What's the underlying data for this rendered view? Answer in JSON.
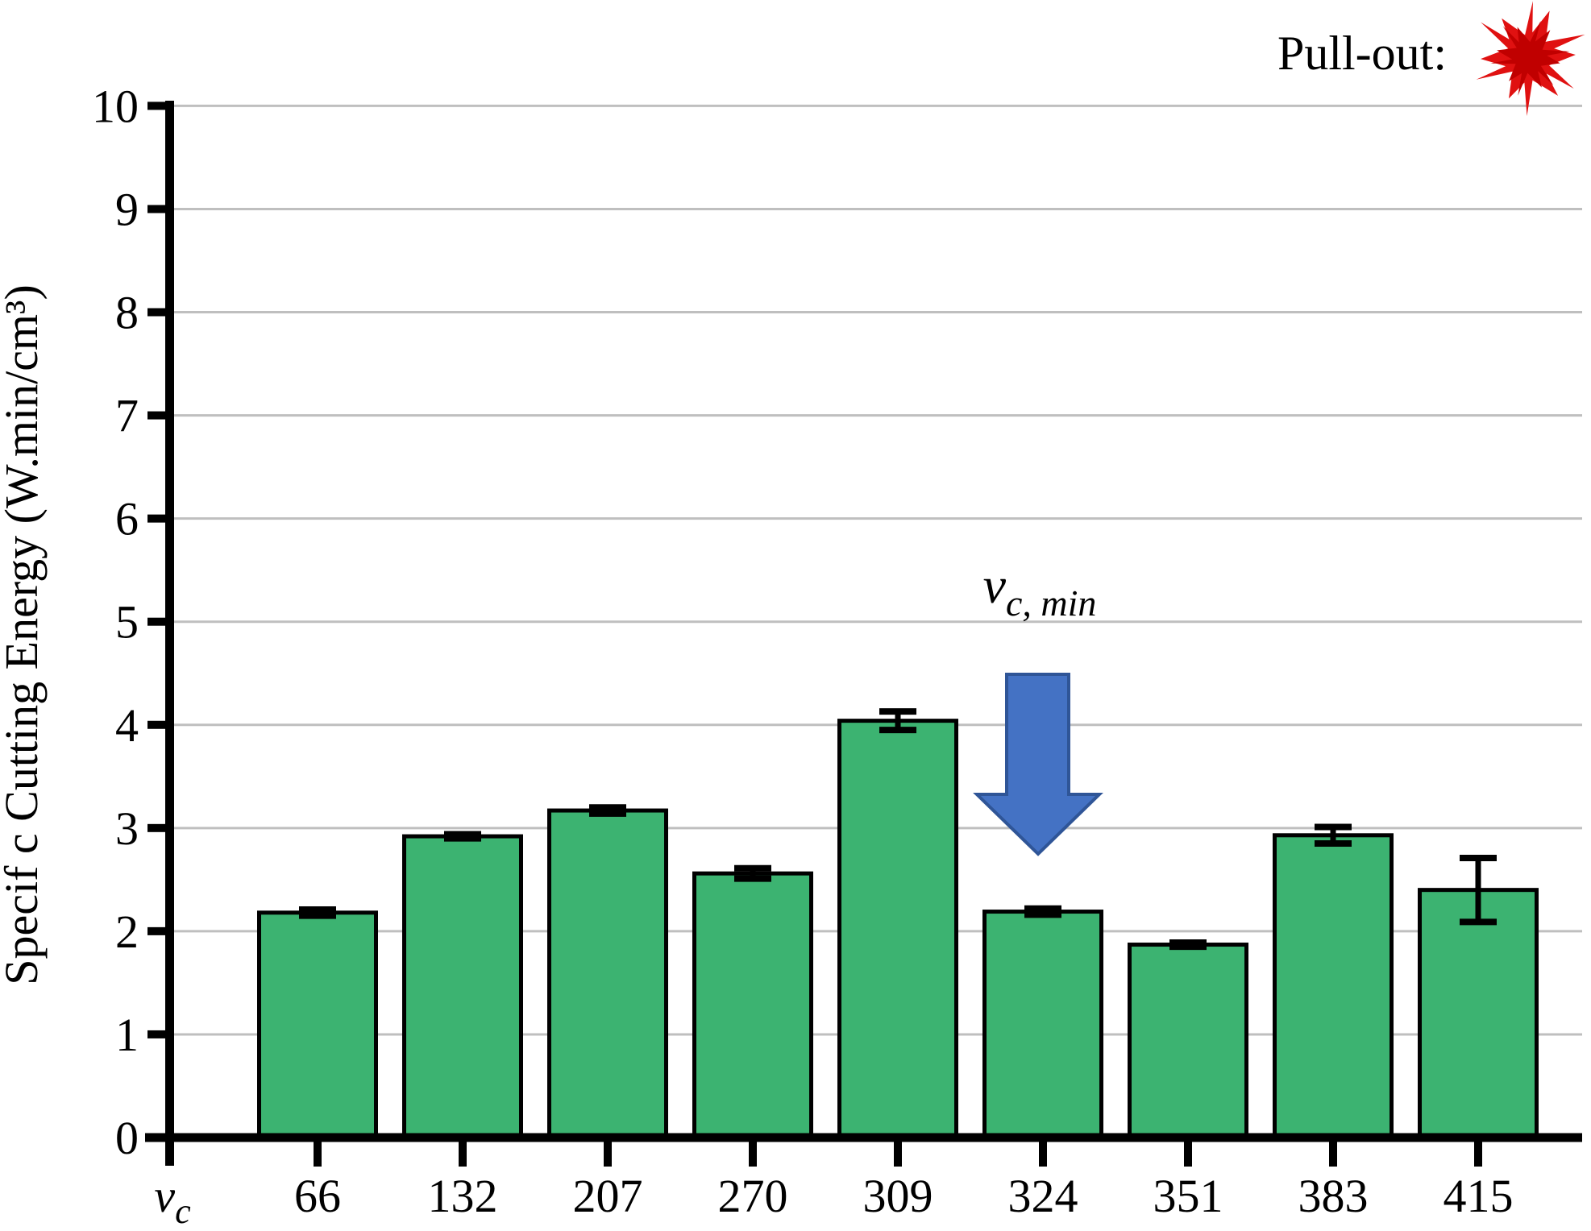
{
  "legend": {
    "label": "Pull-out:",
    "icon": "starburst"
  },
  "annotation": {
    "main": "v",
    "subscript": "c, min",
    "target_category": "324"
  },
  "x_axis_symbol": {
    "main": "v",
    "subscript": "c"
  },
  "colors": {
    "bar_fill": "#3CB371",
    "bar_border": "#000000",
    "gridline": "#BFBFBF",
    "axis": "#000000",
    "error_bar": "#000000",
    "arrow_fill": "#4472C4",
    "arrow_border": "#2F5597",
    "starburst_outer": "#E01111",
    "starburst_inner": "#C00000"
  },
  "chart_data": {
    "type": "bar",
    "title": "",
    "xlabel": "vc",
    "ylabel": "Specif c Cutting Energy (W.min/cm³)",
    "categories": [
      "66",
      "132",
      "207",
      "270",
      "309",
      "324",
      "351",
      "383",
      "415"
    ],
    "values": [
      2.18,
      2.92,
      3.17,
      2.56,
      4.04,
      2.19,
      1.87,
      2.93,
      2.4
    ],
    "error_bars": [
      0.03,
      0.02,
      0.03,
      0.05,
      0.09,
      0.03,
      0.02,
      0.08,
      0.31
    ],
    "ylim": [
      0,
      10
    ],
    "y_ticks": [
      0,
      1,
      2,
      3,
      4,
      5,
      6,
      7,
      8,
      9,
      10
    ],
    "grid": "horizontal-gray",
    "legend_position": "top-right"
  }
}
